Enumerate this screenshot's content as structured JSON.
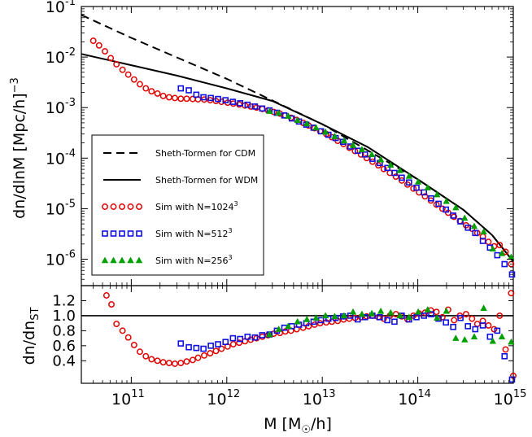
{
  "chart_data": [
    {
      "panel": "top",
      "type": "scatter",
      "scale": "log-log",
      "xlim": [
        30000000000.0,
        1000000000000000.0
      ],
      "ylim": [
        3e-07,
        0.1
      ],
      "ylabel": "dn/dlnM [Mpc/h]",
      "ylabel_exp": "−3",
      "yticks": [
        {
          "v": 1e-06,
          "base": "10",
          "exp": "-6"
        },
        {
          "v": 1e-05,
          "base": "10",
          "exp": "-5"
        },
        {
          "v": 0.0001,
          "base": "10",
          "exp": "-4"
        },
        {
          "v": 0.001,
          "base": "10",
          "exp": "-3"
        },
        {
          "v": 0.01,
          "base": "10",
          "exp": "-2"
        },
        {
          "v": 0.1,
          "base": "10",
          "exp": "-1"
        }
      ],
      "legend_position": "lower-left",
      "series": [
        {
          "name": "Sheth-Tormen for CDM",
          "style": "dashed",
          "color": "#000000",
          "x": [
            30000000000.0,
            100000000000.0,
            1000000000000.0,
            10000000000000.0,
            100000000000000.0,
            300000000000000.0,
            600000000000000.0,
            1000000000000000.0
          ],
          "y": [
            0.068,
            0.024,
            0.0037,
            0.00047,
            3.8e-05,
            9.5e-06,
            3e-06,
            9e-07
          ]
        },
        {
          "name": "Sheth-Tormen for WDM",
          "style": "solid",
          "color": "#000000",
          "x": [
            30000000000.0,
            100000000000.0,
            300000000000.0,
            1000000000000.0,
            3000000000000.0,
            10000000000000.0,
            30000000000000.0,
            100000000000000.0,
            300000000000000.0,
            600000000000000.0,
            1000000000000000.0
          ],
          "y": [
            0.0115,
            0.0069,
            0.0043,
            0.0024,
            0.00135,
            0.00047,
            0.000165,
            3.8e-05,
            9.5e-06,
            3e-06,
            9e-07
          ]
        },
        {
          "name": "Sim with N=1024",
          "name_exp": "3",
          "marker": "circle",
          "color": "#e00000",
          "x": [
            40000000000.0,
            46000000000.0,
            53000000000.0,
            61000000000.0,
            70000000000.0,
            81000000000.0,
            93000000000.0,
            107000000000.0,
            123000000000.0,
            142000000000.0,
            163000000000.0,
            188000000000.0,
            216000000000.0,
            249000000000.0,
            286000000000.0,
            330000000000.0,
            380000000000.0,
            440000000000.0,
            500000000000.0,
            580000000000.0,
            670000000000.0,
            770000000000.0,
            880000000000.0,
            1020000000000.0,
            1170000000000.0,
            1350000000000.0,
            1550000000000.0,
            1780000000000.0,
            2050000000000.0,
            2360000000000.0,
            2700000000000.0,
            3100000000000.0,
            3600000000000.0,
            4100000000000.0,
            4700000000000.0,
            5400000000000.0,
            6300000000000.0,
            7200000000000.0,
            8300000000000.0,
            9500000000000.0,
            11000000000000.0,
            12600000000000.0,
            14500000000000.0,
            16700000000000.0,
            19200000000000.0,
            22000000000000.0,
            25400000000000.0,
            29200000000000.0,
            33600000000000.0,
            38600000000000.0,
            44000000000000.0,
            51000000000000.0,
            59000000000000.0,
            68000000000000.0,
            78000000000000.0,
            90000000000000.0,
            103000000000000.0,
            119000000000000.0,
            137000000000000.0,
            157000000000000.0,
            181000000000000.0,
            208000000000000.0,
            240000000000000.0,
            276000000000000.0,
            320000000000000.0,
            370000000000000.0,
            420000000000000.0,
            480000000000000.0,
            550000000000000.0,
            630000000000000.0,
            720000000000000.0,
            830000000000000.0,
            950000000000000.0
          ],
          "y": [
            0.021,
            0.017,
            0.013,
            0.0095,
            0.0072,
            0.0056,
            0.0045,
            0.0036,
            0.0029,
            0.0024,
            0.0021,
            0.0019,
            0.0017,
            0.0016,
            0.00155,
            0.0015,
            0.0015,
            0.00148,
            0.00146,
            0.00144,
            0.0014,
            0.00135,
            0.0013,
            0.00125,
            0.0012,
            0.00115,
            0.0011,
            0.00105,
            0.001,
            0.00094,
            0.00088,
            0.00082,
            0.00076,
            0.0007,
            0.00063,
            0.00057,
            0.0005,
            0.00044,
            0.00039,
            0.00034,
            0.0003,
            0.00026,
            0.00022,
            0.00019,
            0.00016,
            0.000138,
            0.000118,
            0.0001,
            8.5e-05,
            7.2e-05,
            6.1e-05,
            5.1e-05,
            4.3e-05,
            3.6e-05,
            3e-05,
            2.5e-05,
            2.1e-05,
            1.75e-05,
            1.45e-05,
            1.2e-05,
            1e-05,
            8.3e-06,
            6.9e-06,
            5.7e-06,
            4.7e-06,
            4e-06,
            3.3e-06,
            2.8e-06,
            2.2e-06,
            1.8e-06,
            1.9e-06,
            1.4e-06,
            8e-07
          ]
        },
        {
          "name": "Sim with N=512",
          "name_exp": "3",
          "marker": "square",
          "color": "#1010e0",
          "x": [
            330000000000.0,
            400000000000.0,
            480000000000.0,
            570000000000.0,
            680000000000.0,
            810000000000.0,
            970000000000.0,
            1160000000000.0,
            1380000000000.0,
            1650000000000.0,
            1970000000000.0,
            2350000000000.0,
            2800000000000.0,
            3350000000000.0,
            4000000000000.0,
            4800000000000.0,
            5700000000000.0,
            6800000000000.0,
            8100000000000.0,
            9700000000000.0,
            11600000000000.0,
            13800000000000.0,
            16500000000000.0,
            19700000000000.0,
            23500000000000.0,
            28000000000000.0,
            33500000000000.0,
            40000000000000.0,
            48000000000000.0,
            57000000000000.0,
            68000000000000.0,
            81000000000000.0,
            97000000000000.0,
            116000000000000.0,
            138000000000000.0,
            165000000000000.0,
            197000000000000.0,
            235000000000000.0,
            280000000000000.0,
            335000000000000.0,
            400000000000000.0,
            480000000000000.0,
            570000000000000.0,
            680000000000000.0,
            810000000000000.0,
            970000000000000.0
          ],
          "y": [
            0.0024,
            0.0022,
            0.0018,
            0.0016,
            0.00155,
            0.00148,
            0.0014,
            0.0013,
            0.00122,
            0.00114,
            0.00105,
            0.00096,
            0.00088,
            0.00079,
            0.0007,
            0.00061,
            0.00053,
            0.00046,
            0.0004,
            0.00034,
            0.00029,
            0.00025,
            0.00021,
            0.00017,
            0.00014,
            0.000118,
            9.7e-05,
            8e-05,
            6.4e-05,
            5.1e-05,
            4.1e-05,
            3.3e-05,
            2.6e-05,
            2.1e-05,
            1.6e-05,
            1.25e-05,
            9.6e-06,
            7.3e-06,
            5.6e-06,
            4.2e-06,
            3.3e-06,
            2.3e-06,
            1.7e-06,
            1.2e-06,
            8e-07,
            5e-07
          ]
        },
        {
          "name": "Sim with N=256",
          "name_exp": "3",
          "marker": "triangle",
          "color": "#00a000",
          "x": [
            2800000000000.0,
            3500000000000.0,
            4400000000000.0,
            5500000000000.0,
            6900000000000.0,
            8600000000000.0,
            10800000000000.0,
            13500000000000.0,
            16900000000000.0,
            21000000000000.0,
            26000000000000.0,
            33000000000000.0,
            41000000000000.0,
            52000000000000.0,
            65000000000000.0,
            81000000000000.0,
            101000000000000.0,
            127000000000000.0,
            159000000000000.0,
            199000000000000.0,
            250000000000000.0,
            310000000000000.0,
            390000000000000.0,
            490000000000000.0,
            610000000000000.0,
            760000000000000.0,
            950000000000000.0
          ],
          "y": [
            0.00085,
            0.00078,
            0.00068,
            0.00056,
            0.00048,
            0.0004,
            0.00033,
            0.00027,
            0.00022,
            0.00018,
            0.000148,
            0.000118,
            9.3e-05,
            7.3e-05,
            5.7e-05,
            4.4e-05,
            3.4e-05,
            2.6e-05,
            1.9e-05,
            1.4e-05,
            1.05e-05,
            6.5e-06,
            4.5e-06,
            3.5e-06,
            1.6e-06,
            1.3e-06,
            1.1e-06
          ]
        }
      ],
      "legend": [
        {
          "label": "Sheth-Tormen for CDM"
        },
        {
          "label": "Sheth-Tormen for WDM"
        },
        {
          "label": "Sim with N=1024",
          "exp": "3"
        },
        {
          "label": "Sim with N=512",
          "exp": "3"
        },
        {
          "label": "Sim with N=256",
          "exp": "3"
        }
      ]
    },
    {
      "panel": "bottom",
      "type": "scatter",
      "scale": "log-linear",
      "xlim": [
        30000000000.0,
        1000000000000000.0
      ],
      "ylim": [
        0.1,
        1.4
      ],
      "xlabel": "M [M",
      "xlabel_sub": "☉",
      "xlabel_tail": "/h]",
      "ylabel": "dn/dn",
      "ylabel_sub": "ST",
      "reference_line": 1.0,
      "yticks": [
        {
          "v": 0.4,
          "label": "0.4"
        },
        {
          "v": 0.6,
          "label": "0.6"
        },
        {
          "v": 0.8,
          "label": "0.8"
        },
        {
          "v": 1.0,
          "label": "1.0"
        },
        {
          "v": 1.2,
          "label": "1.2"
        }
      ],
      "xticks": [
        {
          "v": 100000000000.0,
          "base": "10",
          "exp": "11"
        },
        {
          "v": 1000000000000.0,
          "base": "10",
          "exp": "12"
        },
        {
          "v": 10000000000000.0,
          "base": "10",
          "exp": "13"
        },
        {
          "v": 100000000000000.0,
          "base": "10",
          "exp": "14"
        },
        {
          "v": 1000000000000000.0,
          "base": "10",
          "exp": "15"
        }
      ],
      "series": [
        {
          "name": "Sim with N=1024",
          "marker": "circle",
          "color": "#e00000",
          "x": [
            55000000000.0,
            62000000000.0,
            70000000000.0,
            81000000000.0,
            93000000000.0,
            107000000000.0,
            123000000000.0,
            142000000000.0,
            163000000000.0,
            188000000000.0,
            216000000000.0,
            249000000000.0,
            286000000000.0,
            330000000000.0,
            380000000000.0,
            440000000000.0,
            500000000000.0,
            580000000000.0,
            670000000000.0,
            770000000000.0,
            880000000000.0,
            1020000000000.0,
            1170000000000.0,
            1350000000000.0,
            1550000000000.0,
            1780000000000.0,
            2050000000000.0,
            2360000000000.0,
            2700000000000.0,
            3100000000000.0,
            3600000000000.0,
            4100000000000.0,
            4700000000000.0,
            5400000000000.0,
            6300000000000.0,
            7200000000000.0,
            8300000000000.0,
            9500000000000.0,
            11000000000000.0,
            12600000000000.0,
            14500000000000.0,
            16700000000000.0,
            19200000000000.0,
            22000000000000.0,
            25400000000000.0,
            29200000000000.0,
            33600000000000.0,
            38600000000000.0,
            44000000000000.0,
            51000000000000.0,
            59000000000000.0,
            68000000000000.0,
            78000000000000.0,
            90000000000000.0,
            103000000000000.0,
            119000000000000.0,
            137000000000000.0,
            157000000000000.0,
            181000000000000.0,
            208000000000000.0,
            240000000000000.0,
            276000000000000.0,
            320000000000000.0,
            370000000000000.0,
            420000000000000.0,
            480000000000000.0,
            550000000000000.0,
            630000000000000.0,
            720000000000000.0,
            830000000000000.0,
            950000000000000.0,
            1000000000000000.0
          ],
          "y": [
            1.27,
            1.15,
            0.89,
            0.8,
            0.71,
            0.61,
            0.52,
            0.46,
            0.42,
            0.4,
            0.38,
            0.37,
            0.36,
            0.37,
            0.39,
            0.41,
            0.44,
            0.47,
            0.5,
            0.53,
            0.56,
            0.59,
            0.62,
            0.64,
            0.66,
            0.68,
            0.7,
            0.72,
            0.74,
            0.76,
            0.77,
            0.79,
            0.8,
            0.82,
            0.84,
            0.86,
            0.88,
            0.9,
            0.91,
            0.92,
            0.93,
            0.95,
            0.96,
            0.97,
            0.98,
            0.99,
            1.0,
            0.98,
            0.96,
            1.0,
            1.02,
            0.99,
            0.95,
            1.0,
            1.03,
            1.04,
            1.07,
            1.05,
            0.98,
            1.08,
            0.94,
            1.0,
            1.02,
            0.96,
            0.89,
            0.93,
            0.87,
            0.82,
            1.0,
            0.55,
            1.3,
            0.2
          ]
        },
        {
          "name": "Sim with N=512",
          "marker": "square",
          "color": "#1010e0",
          "x": [
            330000000000.0,
            400000000000.0,
            480000000000.0,
            570000000000.0,
            680000000000.0,
            810000000000.0,
            970000000000.0,
            1160000000000.0,
            1380000000000.0,
            1650000000000.0,
            1970000000000.0,
            2350000000000.0,
            2800000000000.0,
            3350000000000.0,
            4000000000000.0,
            4800000000000.0,
            5700000000000.0,
            6800000000000.0,
            8100000000000.0,
            9700000000000.0,
            11600000000000.0,
            13800000000000.0,
            16500000000000.0,
            19700000000000.0,
            23500000000000.0,
            28000000000000.0,
            33500000000000.0,
            40000000000000.0,
            48000000000000.0,
            57000000000000.0,
            68000000000000.0,
            81000000000000.0,
            97000000000000.0,
            116000000000000.0,
            138000000000000.0,
            165000000000000.0,
            197000000000000.0,
            235000000000000.0,
            280000000000000.0,
            335000000000000.0,
            400000000000000.0,
            480000000000000.0,
            570000000000000.0,
            680000000000000.0,
            810000000000000.0,
            970000000000000.0
          ],
          "y": [
            0.63,
            0.58,
            0.57,
            0.56,
            0.6,
            0.62,
            0.65,
            0.7,
            0.69,
            0.72,
            0.71,
            0.74,
            0.75,
            0.8,
            0.84,
            0.86,
            0.88,
            0.9,
            0.92,
            0.94,
            0.96,
            0.97,
            0.99,
            1.0,
            0.95,
            0.98,
            1.0,
            0.98,
            0.94,
            0.92,
            1.0,
            0.95,
            0.98,
            1.0,
            1.02,
            0.96,
            0.91,
            0.85,
            0.97,
            0.86,
            0.82,
            0.87,
            0.72,
            0.8,
            0.46,
            0.15
          ]
        },
        {
          "name": "Sim with N=256",
          "marker": "triangle",
          "color": "#00a000",
          "x": [
            2800000000000.0,
            3500000000000.0,
            4400000000000.0,
            5500000000000.0,
            6900000000000.0,
            8600000000000.0,
            10800000000000.0,
            13500000000000.0,
            16900000000000.0,
            21000000000000.0,
            26000000000000.0,
            33000000000000.0,
            41000000000000.0,
            52000000000000.0,
            65000000000000.0,
            81000000000000.0,
            101000000000000.0,
            127000000000000.0,
            159000000000000.0,
            199000000000000.0,
            250000000000000.0,
            310000000000000.0,
            390000000000000.0,
            490000000000000.0,
            610000000000000.0,
            760000000000000.0,
            950000000000000.0
          ],
          "y": [
            0.75,
            0.82,
            0.86,
            0.92,
            0.95,
            0.97,
            1.0,
            0.99,
            1.0,
            1.05,
            1.02,
            1.03,
            1.06,
            1.04,
            1.0,
            0.98,
            1.05,
            1.08,
            0.97,
            1.06,
            0.7,
            0.68,
            0.72,
            1.1,
            0.66,
            0.72,
            0.65
          ]
        }
      ]
    }
  ]
}
